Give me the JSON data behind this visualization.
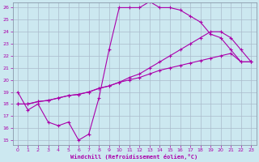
{
  "xlabel": "Windchill (Refroidissement éolien,°C)",
  "bg_color": "#cce8f0",
  "line_color": "#aa00aa",
  "grid_color": "#aabbcc",
  "spine_color": "#8899aa",
  "xlim": [
    -0.5,
    23.5
  ],
  "ylim": [
    14.6,
    26.4
  ],
  "xticks": [
    0,
    1,
    2,
    3,
    4,
    5,
    6,
    7,
    8,
    9,
    10,
    11,
    12,
    13,
    14,
    15,
    16,
    17,
    18,
    19,
    20,
    21,
    22,
    23
  ],
  "yticks": [
    15,
    16,
    17,
    18,
    19,
    20,
    21,
    22,
    23,
    24,
    25,
    26
  ],
  "line1_x": [
    0,
    1,
    2,
    3,
    4,
    5,
    6,
    7,
    8,
    9,
    10,
    11,
    12,
    13,
    14,
    15,
    16,
    17,
    18,
    19,
    20,
    21,
    22,
    23
  ],
  "line1_y": [
    19,
    17.5,
    18,
    16.5,
    16.2,
    16.5,
    15.0,
    15.5,
    18.5,
    22.5,
    26.0,
    26.0,
    26.0,
    26.5,
    26.0,
    26.0,
    25.8,
    25.3,
    24.8,
    23.8,
    23.5,
    22.5,
    21.5,
    21.5
  ],
  "line2_x": [
    0,
    1,
    2,
    3,
    4,
    5,
    6,
    7,
    8,
    9,
    10,
    11,
    12,
    13,
    14,
    15,
    16,
    17,
    18,
    19,
    20,
    21,
    22,
    23
  ],
  "line2_y": [
    18,
    18,
    18.2,
    18.3,
    18.5,
    18.7,
    18.8,
    19.0,
    19.3,
    19.5,
    19.8,
    20.2,
    20.5,
    21.0,
    21.5,
    22.0,
    22.5,
    23.0,
    23.5,
    24.0,
    24.0,
    23.5,
    22.5,
    21.5
  ],
  "line3_x": [
    0,
    1,
    2,
    3,
    4,
    5,
    6,
    7,
    8,
    9,
    10,
    11,
    12,
    13,
    14,
    15,
    16,
    17,
    18,
    19,
    20,
    21,
    22,
    23
  ],
  "line3_y": [
    18,
    18,
    18.2,
    18.3,
    18.5,
    18.7,
    18.8,
    19.0,
    19.3,
    19.5,
    19.8,
    20.0,
    20.2,
    20.5,
    20.8,
    21.0,
    21.2,
    21.4,
    21.6,
    21.8,
    22.0,
    22.2,
    21.5,
    21.5
  ]
}
